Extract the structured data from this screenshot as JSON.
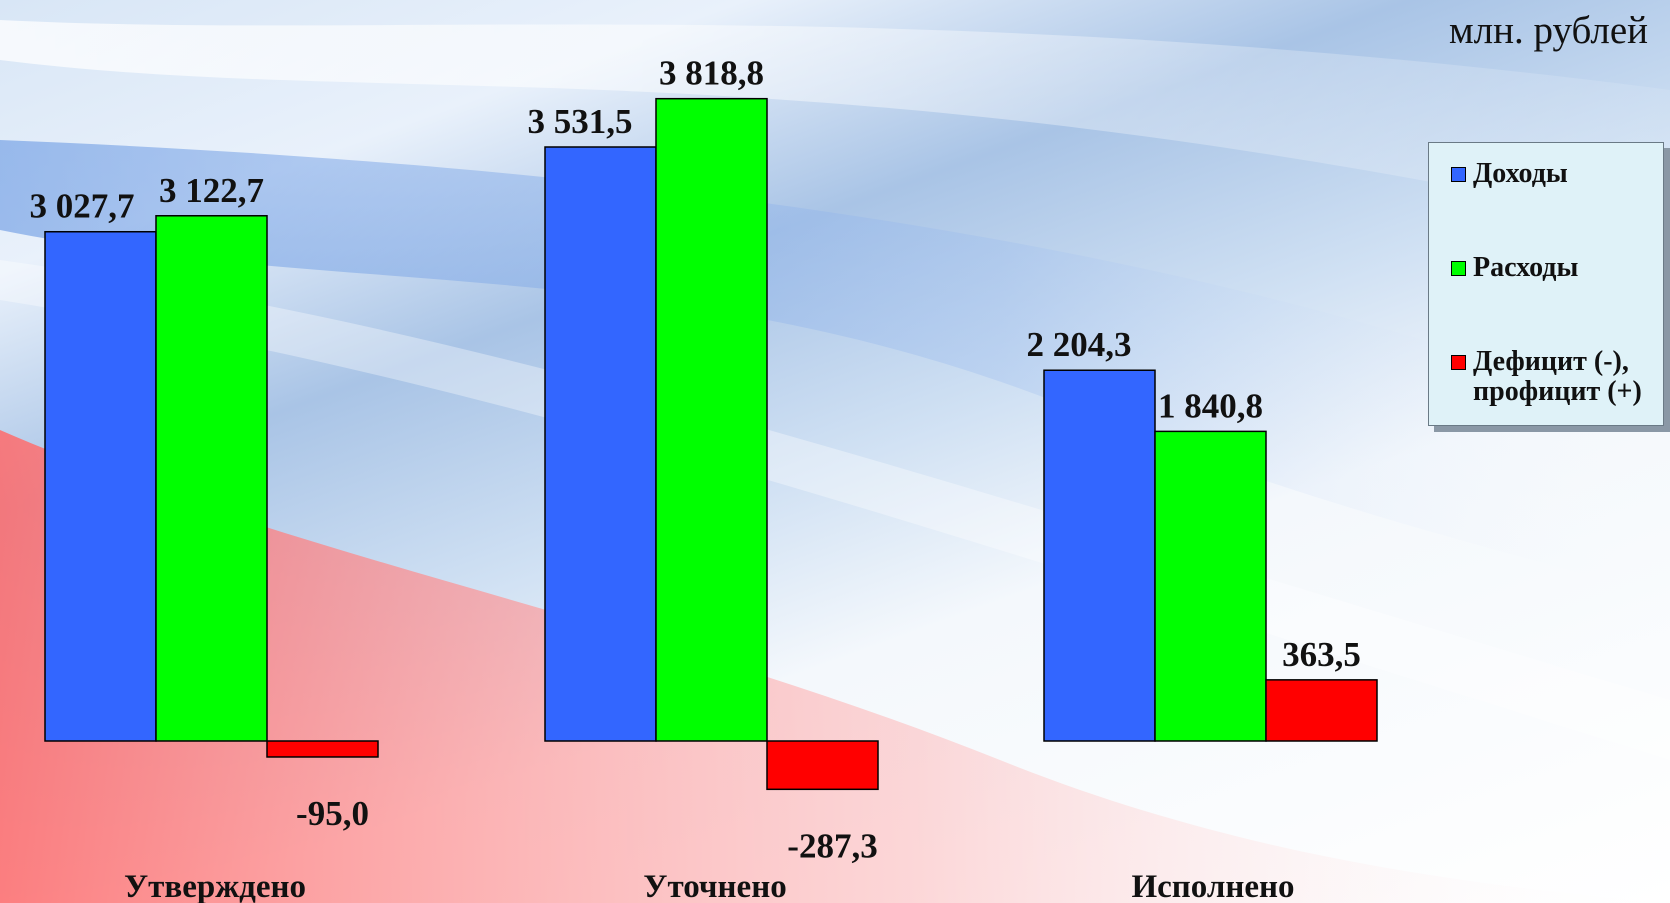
{
  "unit_label": "млн. рублей",
  "colors": {
    "income": "#3366ff",
    "expense": "#00ff00",
    "balance": "#ff0000"
  },
  "chart_data": {
    "type": "bar",
    "categories": [
      "Утверждено",
      "Уточнено",
      "Исполнено"
    ],
    "series": [
      {
        "name": "Доходы",
        "values": [
          3027.7,
          3531.5,
          2204.3
        ],
        "labels": [
          "3 027,7",
          "3 531,5",
          "2 204,3"
        ]
      },
      {
        "name": "Расходы",
        "values": [
          3122.7,
          3818.8,
          1840.8
        ],
        "labels": [
          "3 122,7",
          "3 818,8",
          "1 840,8"
        ]
      },
      {
        "name": "Дефицит (-), профицит (+)",
        "values": [
          -95.0,
          -287.3,
          363.5
        ],
        "labels": [
          "-95,0",
          "-287,3",
          "363,5"
        ]
      }
    ],
    "legend": {
      "position": "right",
      "items": [
        "Доходы",
        "Расходы",
        "Дефицит (-), профицит (+)"
      ]
    }
  }
}
